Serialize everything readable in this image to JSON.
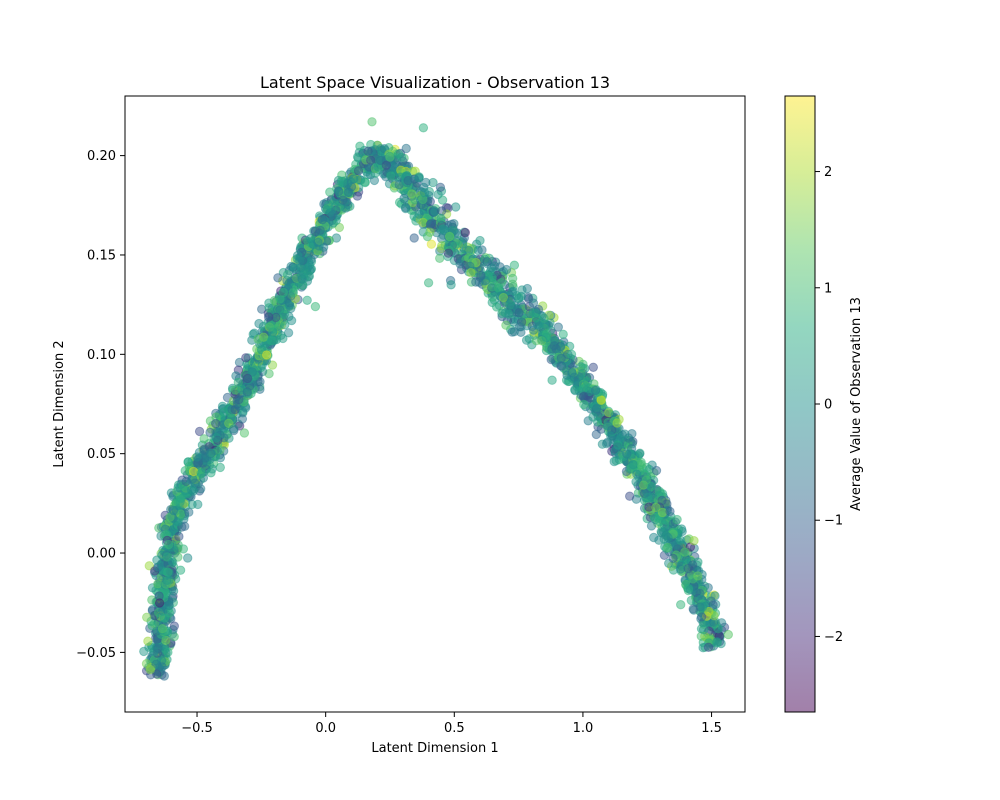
{
  "chart_data": {
    "type": "scatter",
    "title": "Latent Space Visualization - Observation 13",
    "xlabel": "Latent Dimension 1",
    "ylabel": "Latent Dimension 2",
    "xlim": [
      -0.78,
      1.63
    ],
    "ylim": [
      -0.08,
      0.23
    ],
    "xticks": [
      -0.5,
      0.0,
      0.5,
      1.0,
      1.5
    ],
    "xtick_labels": [
      "−0.5",
      "0.0",
      "0.5",
      "1.0",
      "1.5"
    ],
    "yticks": [
      -0.05,
      0.0,
      0.05,
      0.1,
      0.15,
      0.2
    ],
    "ytick_labels": [
      "−0.05",
      "0.00",
      "0.05",
      "0.10",
      "0.15",
      "0.20"
    ],
    "grid": false,
    "marker_alpha": 0.5,
    "colormap": "viridis",
    "colorbar": {
      "label": "Average Value of Observation 13",
      "vmin": -2.65,
      "vmax": 2.65,
      "ticks": [
        -2,
        -1,
        0,
        1,
        2
      ],
      "tick_labels": [
        "−2",
        "−1",
        "0",
        "1",
        "2"
      ]
    },
    "point_cloud": {
      "description_path": [
        [
          -0.66,
          -0.062
        ],
        [
          -0.64,
          -0.04
        ],
        [
          -0.62,
          -0.01
        ],
        [
          -0.6,
          0.015
        ],
        [
          -0.55,
          0.03
        ],
        [
          -0.45,
          0.05
        ],
        [
          -0.35,
          0.075
        ],
        [
          -0.25,
          0.1
        ],
        [
          -0.15,
          0.13
        ],
        [
          -0.05,
          0.155
        ],
        [
          0.05,
          0.178
        ],
        [
          0.15,
          0.195
        ],
        [
          0.22,
          0.203
        ],
        [
          0.3,
          0.19
        ],
        [
          0.4,
          0.17
        ],
        [
          0.55,
          0.15
        ],
        [
          0.7,
          0.13
        ],
        [
          0.85,
          0.11
        ],
        [
          1.0,
          0.085
        ],
        [
          1.1,
          0.065
        ],
        [
          1.2,
          0.045
        ],
        [
          1.3,
          0.02
        ],
        [
          1.4,
          -0.005
        ],
        [
          1.47,
          -0.025
        ],
        [
          1.52,
          -0.047
        ]
      ],
      "outliers": [
        [
          0.38,
          0.214
        ],
        [
          0.18,
          0.217
        ],
        [
          0.4,
          0.136
        ],
        [
          -0.04,
          0.124
        ],
        [
          1.38,
          -0.026
        ],
        [
          0.88,
          0.087
        ],
        [
          1.0,
          0.093
        ]
      ]
    }
  }
}
